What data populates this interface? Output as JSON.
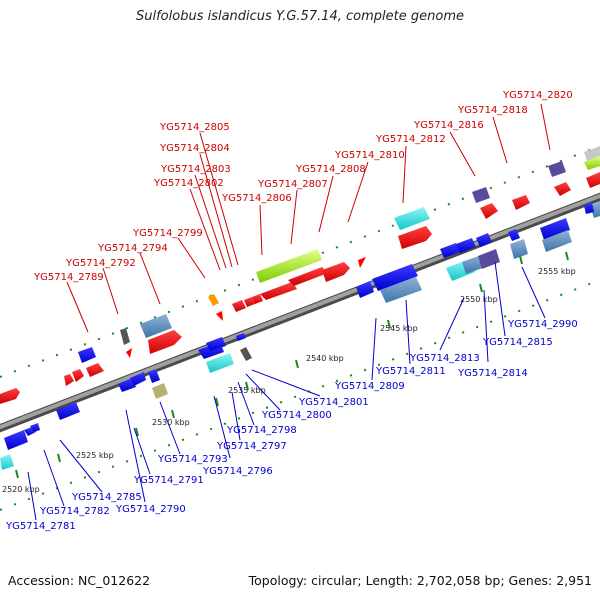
{
  "title": "Sulfolobus islandicus Y.G.57.14, complete genome",
  "footer": {
    "accession": "Accession: NC_012622",
    "summary": "Topology: circular; Length: 2,702,058 bp; Genes: 2,951"
  },
  "colors": {
    "top_labels": "#cc0000",
    "bottom_labels": "#0000cc",
    "backbone": "#888888",
    "forward_genes": "#ff0000",
    "reverse_genes": "#0000ff"
  },
  "position_labels": [
    "2520 kbp",
    "2525 kbp",
    "2530 kbp",
    "2535 kbp",
    "2540 kbp",
    "2545 kbp",
    "2550 kbp",
    "2555 kbp"
  ],
  "top_gene_labels": [
    "YG5714_2820",
    "YG5714_2818",
    "YG5714_2816",
    "YG5714_2812",
    "YG5714_2810",
    "YG5714_2808",
    "YG5714_2807",
    "YG5714_2806",
    "YG5714_2805",
    "YG5714_2804",
    "YG5714_2803",
    "YG5714_2802",
    "YG5714_2799",
    "YG5714_2794",
    "YG5714_2792",
    "YG5714_2789"
  ],
  "bottom_gene_labels": [
    "YG5714_2990",
    "YG5714_2815",
    "YG5714_2814",
    "YG5714_2813",
    "YG5714_2811",
    "YG5714_2809",
    "YG5714_2801",
    "YG5714_2800",
    "YG5714_2798",
    "YG5714_2797",
    "YG5714_2796",
    "YG5714_2793",
    "YG5714_2791",
    "YG5714_2790",
    "YG5714_2785",
    "YG5714_2782",
    "YG5714_2781"
  ]
}
